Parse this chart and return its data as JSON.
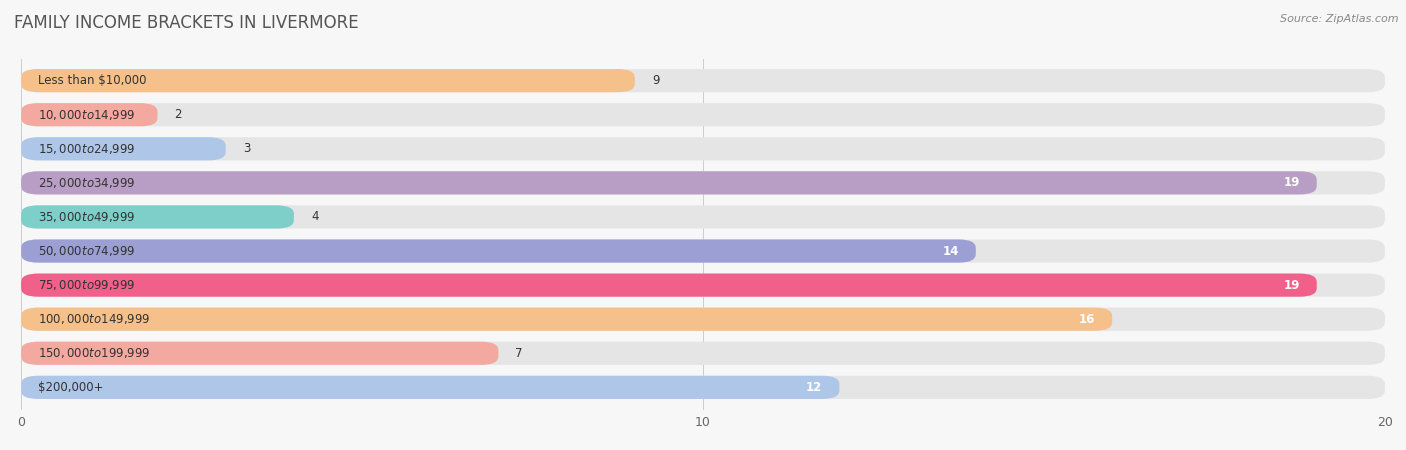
{
  "title": "Family Income Brackets in Livermore",
  "source": "Source: ZipAtlas.com",
  "categories": [
    "Less than $10,000",
    "$10,000 to $14,999",
    "$15,000 to $24,999",
    "$25,000 to $34,999",
    "$35,000 to $49,999",
    "$50,000 to $74,999",
    "$75,000 to $99,999",
    "$100,000 to $149,999",
    "$150,000 to $199,999",
    "$200,000+"
  ],
  "values": [
    9,
    2,
    3,
    19,
    4,
    14,
    19,
    16,
    7,
    12
  ],
  "bar_colors": [
    "#f5c08a",
    "#f4a9a0",
    "#aec6e8",
    "#b89ec4",
    "#7ececa",
    "#9b9fd4",
    "#f0608a",
    "#f5c08a",
    "#f4a9a0",
    "#aec6e8"
  ],
  "xlim_min": 0,
  "xlim_max": 20,
  "xticks": [
    0,
    10,
    20
  ],
  "background_color": "#f7f7f7",
  "bar_bg_color": "#e5e5e5",
  "title_fontsize": 12,
  "label_fontsize": 8.5,
  "value_fontsize": 8.5,
  "bar_height": 0.68,
  "bar_sep": 1.0
}
